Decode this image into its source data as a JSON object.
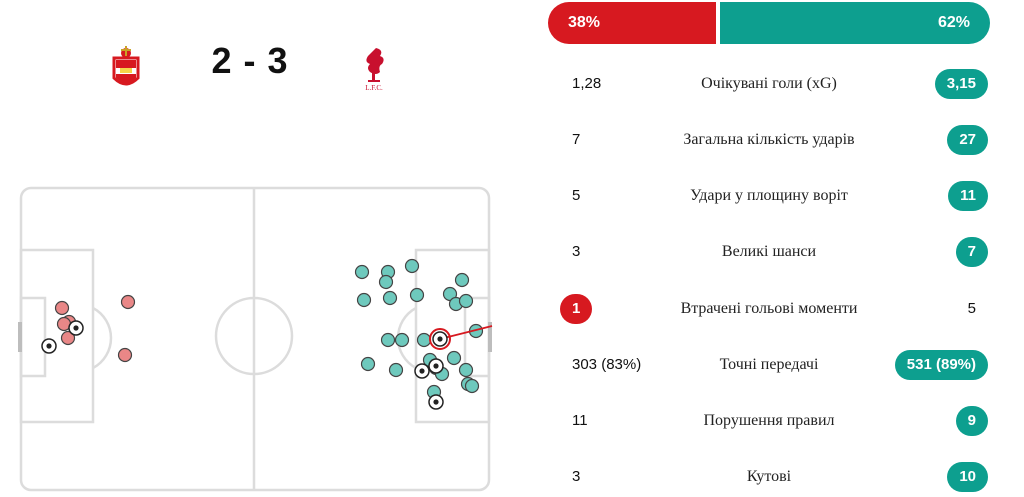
{
  "match": {
    "home_team": "Southampton",
    "away_team": "Liverpool",
    "score": "2 - 3",
    "away_crest_text": "L.F.C."
  },
  "colors": {
    "home": "#d71920",
    "away": "#0d9f8f",
    "home_shot": "#e98787",
    "away_shot": "#6ec9bd"
  },
  "possession": {
    "home": "38%",
    "away": "62%",
    "home_fraction": 0.38
  },
  "stats": [
    {
      "label": "Очікувані голи (xG)",
      "home": "1,28",
      "away": "3,15",
      "highlight": "away"
    },
    {
      "label": "Загальна кількість ударів",
      "home": "7",
      "away": "27",
      "highlight": "away"
    },
    {
      "label": "Удари у площину воріт",
      "home": "5",
      "away": "11",
      "highlight": "away"
    },
    {
      "label": "Великі шанси",
      "home": "3",
      "away": "7",
      "highlight": "away"
    },
    {
      "label": "Втрачені гольові моменти",
      "home": "1",
      "away": "5",
      "highlight": "home"
    },
    {
      "label": "Точні передачі",
      "home": "303 (83%)",
      "away": "531 (89%)",
      "highlight": "away"
    },
    {
      "label": "Порушення правил",
      "home": "11",
      "away": "9",
      "highlight": "away"
    },
    {
      "label": "Кутові",
      "home": "3",
      "away": "10",
      "highlight": "away"
    }
  ]
}
